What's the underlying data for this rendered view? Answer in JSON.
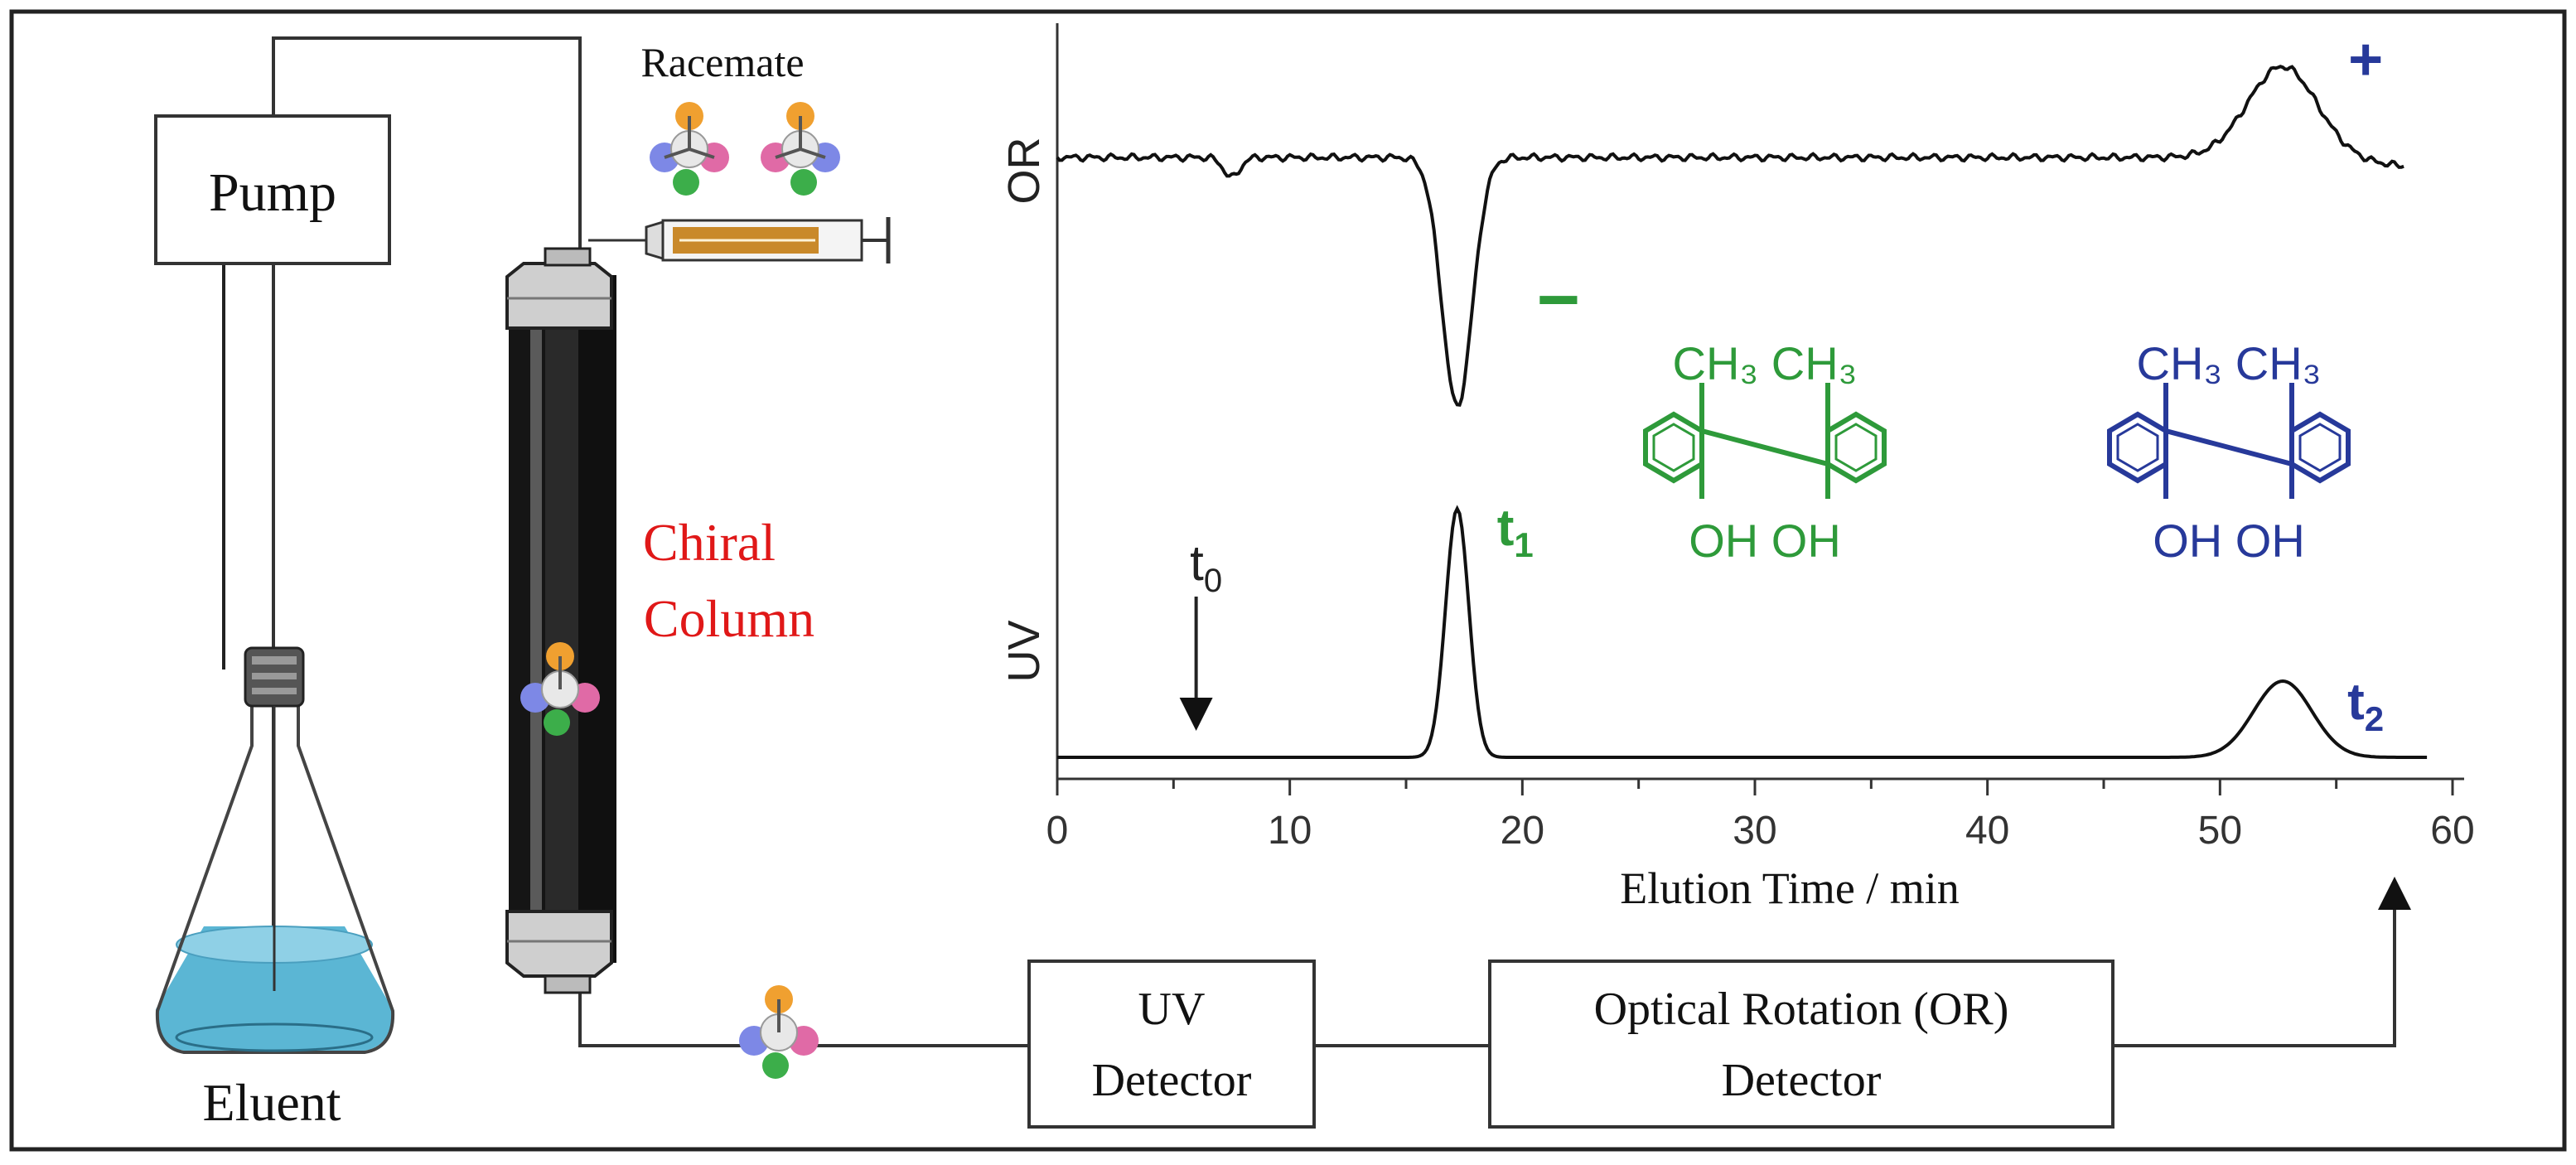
{
  "labels": {
    "pump": "Pump",
    "racemate": "Racemate",
    "chiral_column_line1": "Chiral",
    "chiral_column_line2": "Column",
    "eluent": "Eluent",
    "uv_detector_line1": "UV",
    "uv_detector_line2": "Detector",
    "or_detector_line1": "Optical Rotation (OR)",
    "or_detector_line2": "Detector"
  },
  "molecules": {
    "enantiomer_1": {
      "top": "CH₃ CH₃",
      "bottom": "OH OH",
      "color": "#2e9a3a"
    },
    "enantiomer_2": {
      "top": "CH₃ CH₃",
      "bottom": "OH OH",
      "color": "#27399a"
    }
  },
  "chart_data": {
    "type": "line",
    "xlabel": "Elution Time / min",
    "xlim": [
      0,
      60
    ],
    "x_ticks": [
      "0",
      "10",
      "20",
      "30",
      "40",
      "50",
      "60"
    ],
    "traces": [
      {
        "name": "OR",
        "sign_negative": "−",
        "sign_positive": "+",
        "peaks": [
          {
            "x": 17.2,
            "direction": "negative"
          },
          {
            "x": 52.7,
            "direction": "positive"
          }
        ]
      },
      {
        "name": "UV",
        "peaks": [
          {
            "x": 17.2,
            "label": "t",
            "label_sub": "1"
          },
          {
            "x": 52.7,
            "label": "t",
            "label_sub": "2"
          }
        ]
      }
    ],
    "dead_time": {
      "label": "t",
      "label_sub": "0",
      "x": 6.4
    },
    "colors": {
      "negative": "#2e9a3a",
      "positive": "#27399a",
      "trace": "#111111"
    }
  }
}
